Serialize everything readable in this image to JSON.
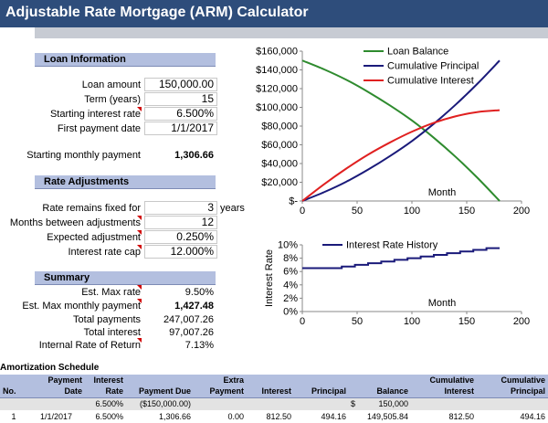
{
  "title": "Adjustable Rate Mortgage (ARM) Calculator",
  "loan_info": {
    "header": "Loan Information",
    "loan_amount_label": "Loan amount",
    "loan_amount": "150,000.00",
    "term_label": "Term (years)",
    "term": "15",
    "rate_label": "Starting interest rate",
    "rate": "6.500%",
    "first_payment_label": "First payment date",
    "first_payment": "1/1/2017",
    "monthly_payment_label": "Starting monthly payment",
    "monthly_payment": "1,306.66"
  },
  "rate_adj": {
    "header": "Rate Adjustments",
    "fixed_label": "Rate remains fixed for",
    "fixed": "3",
    "fixed_unit": "years",
    "months_label": "Months between adjustments",
    "months": "12",
    "expected_label": "Expected adjustment",
    "expected": "0.250%",
    "cap_label": "Interest rate cap",
    "cap": "12.000%"
  },
  "summary": {
    "header": "Summary",
    "max_rate_label": "Est. Max rate",
    "max_rate": "9.50%",
    "max_payment_label": "Est. Max monthly payment",
    "max_payment": "1,427.48",
    "total_payments_label": "Total payments",
    "total_payments": "247,007.26",
    "total_interest_label": "Total interest",
    "total_interest": "97,007.26",
    "irr_label": "Internal Rate of Return",
    "irr": "7.13%"
  },
  "amortization": {
    "title": "Amortization Schedule",
    "headers": [
      {
        "top": "",
        "bottom": "No."
      },
      {
        "top": "Payment",
        "bottom": "Date"
      },
      {
        "top": "Interest",
        "bottom": "Rate"
      },
      {
        "top": "",
        "bottom": "Payment Due"
      },
      {
        "top": "Extra",
        "bottom": "Payment"
      },
      {
        "top": "",
        "bottom": "Interest"
      },
      {
        "top": "",
        "bottom": "Principal"
      },
      {
        "top": "",
        "bottom": "Balance"
      },
      {
        "top": "Cumulative",
        "bottom": "Interest"
      },
      {
        "top": "Cumulative",
        "bottom": "Principal"
      }
    ],
    "row0": {
      "rate": "6.500%",
      "due": "($150,000.00)",
      "currency": "$",
      "balance": "150,000"
    },
    "row1": {
      "no": "1",
      "date": "1/1/2017",
      "rate": "6.500%",
      "due": "1,306.66",
      "extra": "0.00",
      "interest": "812.50",
      "principal": "494.16",
      "balance": "149,505.84",
      "cum_interest": "812.50",
      "cum_principal": "494.16"
    }
  },
  "chart_data": [
    {
      "type": "line",
      "title": "",
      "xlabel": "Month",
      "ylabel": "",
      "xlim": [
        0,
        200
      ],
      "ylim": [
        0,
        160000
      ],
      "x_ticks": [
        "0",
        "50",
        "100",
        "150",
        "200"
      ],
      "y_ticks": [
        "$-",
        "$20,000",
        "$40,000",
        "$60,000",
        "$80,000",
        "$100,000",
        "$120,000",
        "$140,000",
        "$160,000"
      ],
      "legend": [
        "Loan Balance",
        "Cumulative Principal",
        "Cumulative Interest"
      ],
      "series": [
        {
          "name": "Loan Balance",
          "color": "#2e8b2e",
          "x": [
            0,
            20,
            40,
            60,
            80,
            100,
            120,
            140,
            160,
            180
          ],
          "y": [
            150000,
            140500,
            129500,
            116500,
            102000,
            86000,
            67500,
            47000,
            24500,
            0
          ]
        },
        {
          "name": "Cumulative Principal",
          "color": "#1a1a7a",
          "x": [
            0,
            20,
            40,
            60,
            80,
            100,
            120,
            140,
            160,
            180
          ],
          "y": [
            0,
            9500,
            20500,
            33500,
            48000,
            64000,
            82500,
            103000,
            125500,
            150000
          ]
        },
        {
          "name": "Cumulative Interest",
          "color": "#e02020",
          "x": [
            0,
            20,
            40,
            60,
            80,
            100,
            120,
            140,
            160,
            180
          ],
          "y": [
            0,
            18000,
            34500,
            49500,
            62500,
            74000,
            83500,
            90500,
            95000,
            97000
          ]
        }
      ]
    },
    {
      "type": "line",
      "title": "",
      "xlabel": "Month",
      "ylabel": "Interest Rate",
      "xlim": [
        0,
        200
      ],
      "ylim": [
        0,
        10
      ],
      "x_ticks": [
        "0",
        "50",
        "100",
        "150",
        "200"
      ],
      "y_ticks": [
        "0%",
        "2%",
        "4%",
        "6%",
        "8%",
        "10%"
      ],
      "legend": [
        "Interest Rate History"
      ],
      "series": [
        {
          "name": "Interest Rate History",
          "color": "#1a1a7a",
          "x": [
            0,
            36,
            48,
            60,
            72,
            84,
            96,
            108,
            120,
            132,
            144,
            156,
            168,
            180
          ],
          "y": [
            6.5,
            6.75,
            7.0,
            7.25,
            7.5,
            7.75,
            8.0,
            8.25,
            8.5,
            8.75,
            9.0,
            9.25,
            9.5,
            9.5
          ]
        }
      ]
    }
  ]
}
